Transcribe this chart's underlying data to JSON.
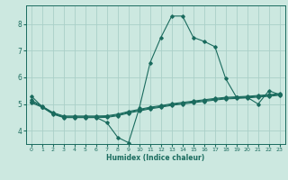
{
  "xlabel": "Humidex (Indice chaleur)",
  "background_color": "#cce8e0",
  "grid_color": "#aacfc8",
  "line_color": "#1a6b5e",
  "xlim": [
    -0.5,
    23.5
  ],
  "ylim": [
    3.5,
    8.7
  ],
  "yticks": [
    4,
    5,
    6,
    7,
    8
  ],
  "xticks": [
    0,
    1,
    2,
    3,
    4,
    5,
    6,
    7,
    8,
    9,
    10,
    11,
    12,
    13,
    14,
    15,
    16,
    17,
    18,
    19,
    20,
    21,
    22,
    23
  ],
  "series": [
    {
      "x": [
        0,
        1,
        2,
        3,
        4,
        5,
        6,
        7,
        8,
        9,
        10,
        11,
        12,
        13,
        14,
        15,
        16,
        17,
        18,
        19,
        20,
        21,
        22,
        23
      ],
      "y": [
        5.3,
        4.9,
        4.65,
        4.5,
        4.5,
        4.5,
        4.5,
        4.3,
        3.75,
        3.55,
        4.85,
        6.55,
        7.5,
        8.3,
        8.3,
        7.5,
        7.35,
        7.15,
        5.95,
        5.25,
        5.25,
        5.0,
        5.5,
        5.35
      ]
    },
    {
      "x": [
        0,
        1,
        2,
        3,
        4,
        5,
        6,
        7,
        8,
        9,
        10,
        11,
        12,
        13,
        14,
        15,
        16,
        17,
        18,
        19,
        20,
        21,
        22,
        23
      ],
      "y": [
        5.15,
        4.92,
        4.68,
        4.55,
        4.55,
        4.55,
        4.55,
        4.56,
        4.62,
        4.72,
        4.8,
        4.88,
        4.94,
        5.01,
        5.06,
        5.11,
        5.16,
        5.21,
        5.25,
        5.27,
        5.29,
        5.32,
        5.35,
        5.39
      ]
    },
    {
      "x": [
        0,
        1,
        2,
        3,
        4,
        5,
        6,
        7,
        8,
        9,
        10,
        11,
        12,
        13,
        14,
        15,
        16,
        17,
        18,
        19,
        20,
        21,
        22,
        23
      ],
      "y": [
        5.1,
        4.9,
        4.65,
        4.52,
        4.52,
        4.52,
        4.52,
        4.53,
        4.59,
        4.69,
        4.77,
        4.85,
        4.91,
        4.98,
        5.03,
        5.08,
        5.13,
        5.18,
        5.22,
        5.24,
        5.26,
        5.29,
        5.32,
        5.36
      ]
    },
    {
      "x": [
        0,
        1,
        2,
        3,
        4,
        5,
        6,
        7,
        8,
        9,
        10,
        11,
        12,
        13,
        14,
        15,
        16,
        17,
        18,
        19,
        20,
        21,
        22,
        23
      ],
      "y": [
        5.05,
        4.88,
        4.62,
        4.49,
        4.49,
        4.49,
        4.49,
        4.5,
        4.56,
        4.66,
        4.74,
        4.82,
        4.88,
        4.95,
        5.0,
        5.05,
        5.1,
        5.15,
        5.19,
        5.21,
        5.23,
        5.26,
        5.29,
        5.33
      ]
    }
  ]
}
